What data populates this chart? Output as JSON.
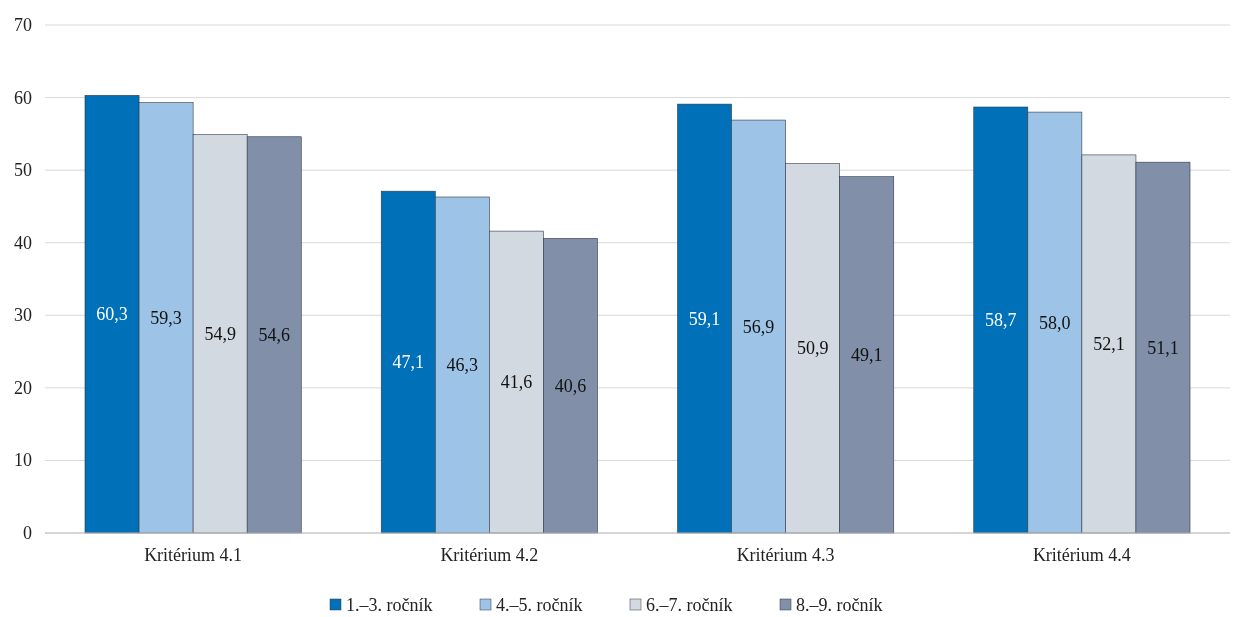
{
  "chart_data": {
    "type": "bar",
    "categories": [
      "Kritérium 4.1",
      "Kritérium 4.2",
      "Kritérium 4.3",
      "Kritérium 4.4"
    ],
    "series": [
      {
        "name": "1.–3. ročník",
        "color": "#0070b8",
        "values": [
          60.3,
          47.1,
          59.1,
          58.7
        ],
        "value_labels": [
          "60,3",
          "47,1",
          "59,1",
          "58,7"
        ]
      },
      {
        "name": "4.–5. ročník",
        "color": "#9dc3e6",
        "values": [
          59.3,
          46.3,
          56.9,
          58.0
        ],
        "value_labels": [
          "59,3",
          "46,3",
          "56,9",
          "58,0"
        ]
      },
      {
        "name": "6.–7. ročník",
        "color": "#d3d9e0",
        "values": [
          54.9,
          41.6,
          50.9,
          52.1
        ],
        "value_labels": [
          "54,9",
          "41,6",
          "50,9",
          "52,1"
        ]
      },
      {
        "name": "8.–9. ročník",
        "color": "#8190a8",
        "values": [
          54.6,
          40.6,
          49.1,
          51.1
        ],
        "value_labels": [
          "54,6",
          "40,6",
          "49,1",
          "51,1"
        ]
      }
    ],
    "ylim": [
      0,
      70
    ],
    "yticks": [
      0,
      10,
      20,
      30,
      40,
      50,
      60,
      70
    ],
    "grid": "y",
    "legend": "bottom"
  }
}
